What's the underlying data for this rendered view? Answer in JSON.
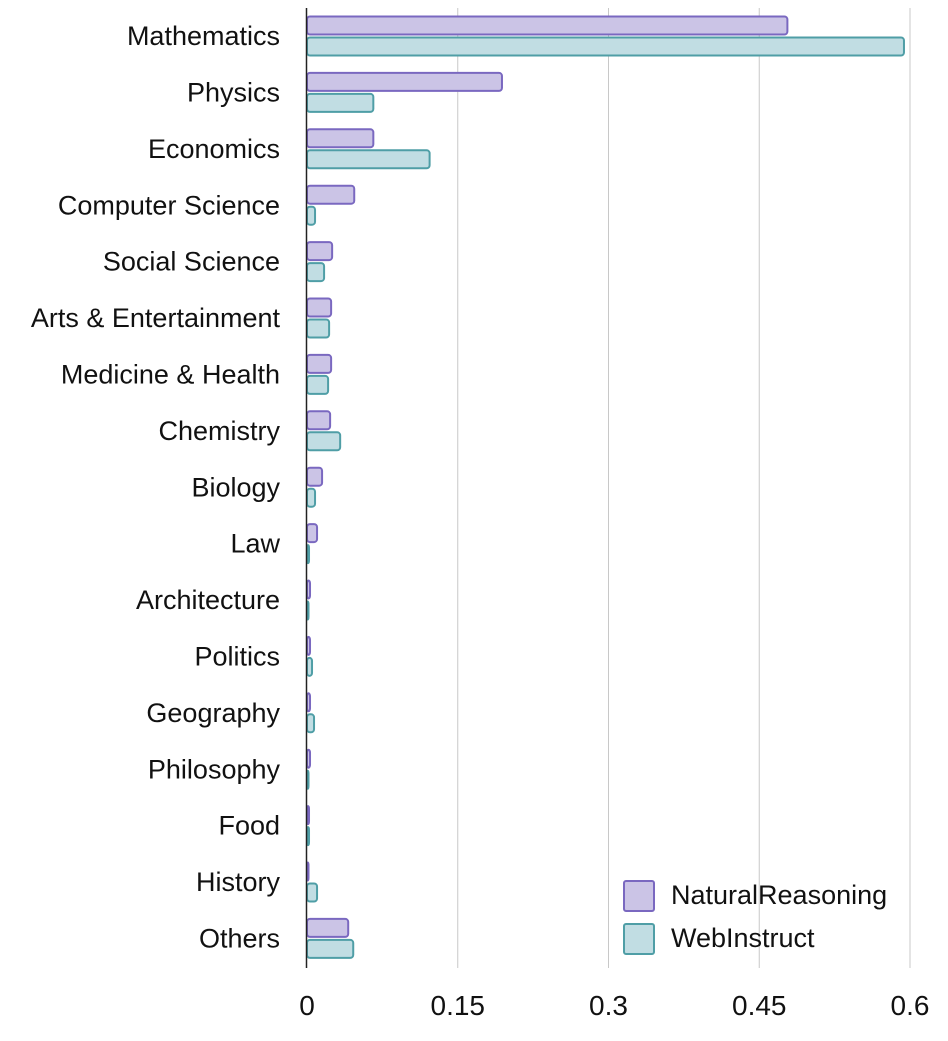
{
  "chart_data": {
    "type": "bar",
    "orientation": "horizontal",
    "categories": [
      "Mathematics",
      "Physics",
      "Economics",
      "Computer Science",
      "Social Science",
      "Arts & Entertainment",
      "Medicine & Health",
      "Chemistry",
      "Biology",
      "Law",
      "Architecture",
      "Politics",
      "Geography",
      "Philosophy",
      "Food",
      "History",
      "Others"
    ],
    "series": [
      {
        "name": "NaturalReasoning",
        "values": [
          0.478,
          0.194,
          0.066,
          0.047,
          0.025,
          0.024,
          0.024,
          0.023,
          0.015,
          0.01,
          0.003,
          0.003,
          0.003,
          0.003,
          0.002,
          0.001,
          0.041
        ]
      },
      {
        "name": "WebInstruct",
        "values": [
          0.594,
          0.066,
          0.122,
          0.008,
          0.017,
          0.022,
          0.021,
          0.033,
          0.008,
          0.002,
          0.001,
          0.005,
          0.007,
          0.001,
          0.002,
          0.01,
          0.046
        ]
      }
    ],
    "xticks": [
      "0",
      "0.15",
      "0.3",
      "0.45",
      "0.6"
    ],
    "xlim": [
      0,
      0.62
    ],
    "title": "",
    "xlabel": "",
    "ylabel": "",
    "grid": "vertical",
    "legend_position": "bottom-right",
    "colors": {
      "NaturalReasoning": {
        "fill": "#cbc4e6",
        "stroke": "#7a68c0"
      },
      "WebInstruct": {
        "fill": "#c1dde3",
        "stroke": "#4f9ea6"
      },
      "grid": "#c8c8c8",
      "axis": "#222222"
    }
  }
}
